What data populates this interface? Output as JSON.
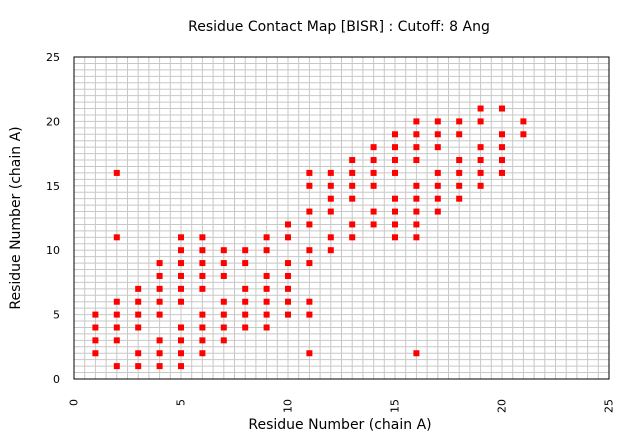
{
  "chart_data": {
    "type": "scatter",
    "title": "Residue Contact Map [BISR] : Cutoff: 8 Ang",
    "xlabel": "Residue Number (chain A)",
    "ylabel": "Residue Number (chain A)",
    "xlim": [
      0,
      25
    ],
    "ylim": [
      0,
      25
    ],
    "xticks": [
      "0",
      "5",
      "10",
      "15",
      "20",
      "25"
    ],
    "yticks": [
      "0",
      "5",
      "10",
      "15",
      "20",
      "25"
    ],
    "minor_step": 0.5,
    "grid": true,
    "marker_color": "#ff0000",
    "grid_color": "#c8c8c8",
    "points": [
      [
        1,
        2
      ],
      [
        1,
        3
      ],
      [
        1,
        4
      ],
      [
        1,
        5
      ],
      [
        2,
        1
      ],
      [
        2,
        3
      ],
      [
        2,
        4
      ],
      [
        2,
        5
      ],
      [
        2,
        6
      ],
      [
        2,
        11
      ],
      [
        2,
        16
      ],
      [
        3,
        1
      ],
      [
        3,
        2
      ],
      [
        3,
        4
      ],
      [
        3,
        5
      ],
      [
        3,
        6
      ],
      [
        3,
        7
      ],
      [
        4,
        1
      ],
      [
        4,
        2
      ],
      [
        4,
        3
      ],
      [
        4,
        5
      ],
      [
        4,
        6
      ],
      [
        4,
        7
      ],
      [
        4,
        8
      ],
      [
        4,
        9
      ],
      [
        5,
        1
      ],
      [
        5,
        2
      ],
      [
        5,
        3
      ],
      [
        5,
        4
      ],
      [
        5,
        6
      ],
      [
        5,
        7
      ],
      [
        5,
        8
      ],
      [
        5,
        9
      ],
      [
        5,
        10
      ],
      [
        5,
        11
      ],
      [
        6,
        2
      ],
      [
        6,
        3
      ],
      [
        6,
        4
      ],
      [
        6,
        5
      ],
      [
        6,
        7
      ],
      [
        6,
        8
      ],
      [
        6,
        9
      ],
      [
        6,
        10
      ],
      [
        6,
        11
      ],
      [
        7,
        3
      ],
      [
        7,
        4
      ],
      [
        7,
        5
      ],
      [
        7,
        6
      ],
      [
        7,
        8
      ],
      [
        7,
        9
      ],
      [
        7,
        10
      ],
      [
        8,
        4
      ],
      [
        8,
        5
      ],
      [
        8,
        6
      ],
      [
        8,
        7
      ],
      [
        8,
        9
      ],
      [
        8,
        10
      ],
      [
        9,
        4
      ],
      [
        9,
        5
      ],
      [
        9,
        6
      ],
      [
        9,
        7
      ],
      [
        9,
        8
      ],
      [
        9,
        10
      ],
      [
        9,
        11
      ],
      [
        10,
        5
      ],
      [
        10,
        6
      ],
      [
        10,
        7
      ],
      [
        10,
        8
      ],
      [
        10,
        9
      ],
      [
        10,
        11
      ],
      [
        10,
        12
      ],
      [
        11,
        2
      ],
      [
        11,
        5
      ],
      [
        11,
        6
      ],
      [
        11,
        9
      ],
      [
        11,
        10
      ],
      [
        11,
        12
      ],
      [
        11,
        13
      ],
      [
        11,
        15
      ],
      [
        11,
        16
      ],
      [
        12,
        10
      ],
      [
        12,
        11
      ],
      [
        12,
        13
      ],
      [
        12,
        14
      ],
      [
        12,
        15
      ],
      [
        12,
        16
      ],
      [
        13,
        11
      ],
      [
        13,
        12
      ],
      [
        13,
        14
      ],
      [
        13,
        15
      ],
      [
        13,
        16
      ],
      [
        13,
        17
      ],
      [
        14,
        12
      ],
      [
        14,
        13
      ],
      [
        14,
        15
      ],
      [
        14,
        16
      ],
      [
        14,
        17
      ],
      [
        14,
        18
      ],
      [
        15,
        11
      ],
      [
        15,
        12
      ],
      [
        15,
        13
      ],
      [
        15,
        14
      ],
      [
        15,
        16
      ],
      [
        15,
        17
      ],
      [
        15,
        18
      ],
      [
        15,
        19
      ],
      [
        16,
        2
      ],
      [
        16,
        11
      ],
      [
        16,
        12
      ],
      [
        16,
        13
      ],
      [
        16,
        14
      ],
      [
        16,
        15
      ],
      [
        16,
        17
      ],
      [
        16,
        18
      ],
      [
        16,
        19
      ],
      [
        16,
        20
      ],
      [
        17,
        13
      ],
      [
        17,
        14
      ],
      [
        17,
        15
      ],
      [
        17,
        16
      ],
      [
        17,
        18
      ],
      [
        17,
        19
      ],
      [
        17,
        20
      ],
      [
        18,
        14
      ],
      [
        18,
        15
      ],
      [
        18,
        16
      ],
      [
        18,
        17
      ],
      [
        18,
        19
      ],
      [
        18,
        20
      ],
      [
        19,
        15
      ],
      [
        19,
        16
      ],
      [
        19,
        17
      ],
      [
        19,
        18
      ],
      [
        19,
        20
      ],
      [
        19,
        21
      ],
      [
        20,
        16
      ],
      [
        20,
        17
      ],
      [
        20,
        18
      ],
      [
        20,
        19
      ],
      [
        20,
        21
      ],
      [
        21,
        19
      ],
      [
        21,
        20
      ]
    ]
  }
}
